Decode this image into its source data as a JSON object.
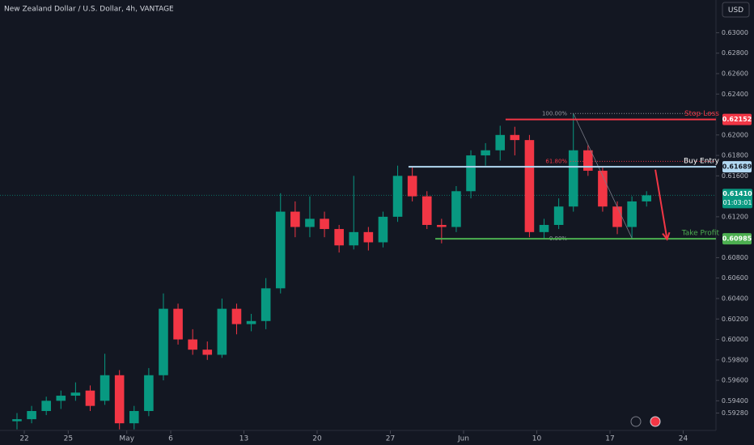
{
  "chart_data": {
    "type": "candlestick",
    "title": "New Zealand Dollar / U.S. Dollar, 4h, VANTAGE",
    "currency": "USD",
    "x": [
      0,
      1,
      2,
      3,
      4,
      5,
      6,
      7,
      8,
      9,
      10,
      11,
      12,
      13,
      14,
      15,
      16,
      17,
      18,
      19,
      20,
      21,
      22,
      23,
      24,
      25,
      26,
      27,
      28,
      29,
      30,
      31,
      32,
      33,
      34,
      35,
      36,
      37,
      38,
      39,
      40,
      41,
      42,
      43
    ],
    "open": [
      0.592,
      0.5922,
      0.593,
      0.594,
      0.5945,
      0.595,
      0.594,
      0.5965,
      0.5918,
      0.593,
      0.5965,
      0.603,
      0.6,
      0.599,
      0.5985,
      0.603,
      0.6015,
      0.6018,
      0.605,
      0.6125,
      0.611,
      0.6118,
      0.6108,
      0.6092,
      0.6105,
      0.6095,
      0.612,
      0.616,
      0.614,
      0.6112,
      0.611,
      0.6145,
      0.618,
      0.6185,
      0.62,
      0.6195,
      0.6105,
      0.6112,
      0.613,
      0.6185,
      0.6165,
      0.613,
      0.611,
      0.6135
    ],
    "high": [
      0.5928,
      0.5935,
      0.5944,
      0.595,
      0.5958,
      0.5955,
      0.5986,
      0.597,
      0.5935,
      0.5972,
      0.6045,
      0.6035,
      0.601,
      0.5998,
      0.604,
      0.6035,
      0.6025,
      0.606,
      0.6143,
      0.6135,
      0.614,
      0.6125,
      0.6112,
      0.616,
      0.611,
      0.6125,
      0.617,
      0.6169,
      0.6145,
      0.6118,
      0.615,
      0.6185,
      0.6192,
      0.6209,
      0.6208,
      0.62,
      0.6118,
      0.6138,
      0.6221,
      0.619,
      0.6168,
      0.6135,
      0.614,
      0.6145
    ],
    "low": [
      0.5912,
      0.5918,
      0.5926,
      0.5932,
      0.594,
      0.593,
      0.5936,
      0.5912,
      0.5912,
      0.5925,
      0.596,
      0.5995,
      0.5985,
      0.598,
      0.5982,
      0.6005,
      0.6008,
      0.601,
      0.6045,
      0.61,
      0.61,
      0.61,
      0.6085,
      0.6088,
      0.6087,
      0.609,
      0.6115,
      0.6135,
      0.6108,
      0.6094,
      0.6105,
      0.6138,
      0.617,
      0.6175,
      0.618,
      0.61,
      0.6098,
      0.6108,
      0.6125,
      0.616,
      0.6125,
      0.6103,
      0.6099,
      0.613
    ],
    "close": [
      0.5922,
      0.593,
      0.594,
      0.5945,
      0.5948,
      0.5935,
      0.5965,
      0.5918,
      0.593,
      0.5965,
      0.603,
      0.6,
      0.599,
      0.5985,
      0.603,
      0.6015,
      0.6018,
      0.605,
      0.6125,
      0.611,
      0.6118,
      0.6108,
      0.6092,
      0.6105,
      0.6095,
      0.612,
      0.616,
      0.614,
      0.6112,
      0.611,
      0.6145,
      0.618,
      0.6185,
      0.62,
      0.6195,
      0.6105,
      0.6112,
      0.613,
      0.6185,
      0.6165,
      0.613,
      0.611,
      0.6135,
      0.6141
    ],
    "up_color": "#089981",
    "down_color": "#f23645",
    "xlim": [
      -1.16,
      47.74
    ],
    "xticks": [
      {
        "value": 0.5,
        "label": "22"
      },
      {
        "value": 3.5,
        "label": "25"
      },
      {
        "value": 7.5,
        "label": "May"
      },
      {
        "value": 10.5,
        "label": "6"
      },
      {
        "value": 15.5,
        "label": "13"
      },
      {
        "value": 20.5,
        "label": "20"
      },
      {
        "value": 25.5,
        "label": "27"
      },
      {
        "value": 30.5,
        "label": "Jun"
      },
      {
        "value": 35.5,
        "label": "10"
      },
      {
        "value": 40.5,
        "label": "17"
      },
      {
        "value": 45.5,
        "label": "24"
      }
    ],
    "ylim": [
      0.5911,
      0.6332
    ],
    "yticks": [
      {
        "value": 0.63,
        "label": "0.63000"
      },
      {
        "value": 0.628,
        "label": "0.62800"
      },
      {
        "value": 0.626,
        "label": "0.62600"
      },
      {
        "value": 0.624,
        "label": "0.62400"
      },
      {
        "value": 0.62,
        "label": "0.62000"
      },
      {
        "value": 0.618,
        "label": "0.61800"
      },
      {
        "value": 0.616,
        "label": "0.61600"
      },
      {
        "value": 0.612,
        "label": "0.61200"
      },
      {
        "value": 0.608,
        "label": "0.60800"
      },
      {
        "value": 0.606,
        "label": "0.60600"
      },
      {
        "value": 0.604,
        "label": "0.60400"
      },
      {
        "value": 0.602,
        "label": "0.60200"
      },
      {
        "value": 0.6,
        "label": "0.60000"
      },
      {
        "value": 0.598,
        "label": "0.59800"
      },
      {
        "value": 0.596,
        "label": "0.59600"
      },
      {
        "value": 0.594,
        "label": "0.59400"
      },
      {
        "value": 0.5928,
        "label": "0.59280"
      }
    ],
    "levels": [
      {
        "name": "Stop Loss",
        "price": {
          "value": 0.62152,
          "label": "0.62152"
        },
        "from": 33.37,
        "color": "#f23645",
        "text_color": "#f23645",
        "badge_text": "#ffffff"
      },
      {
        "name": "Buy Entry",
        "price": {
          "value": 0.61689,
          "label": "0.61689"
        },
        "from": 26.74,
        "color": "#b2d9f2",
        "text_color": "#ffffff",
        "badge_text": "#131722"
      },
      {
        "name": "Take Profit",
        "price": {
          "value": 0.60985,
          "label": "0.60985"
        },
        "from": 28.57,
        "color": "#4caf50",
        "text_color": "#4caf50",
        "badge_text": "#ffffff"
      }
    ],
    "fib": {
      "from": 37.8,
      "levels": [
        {
          "label": "100.00%",
          "value": 0.6221,
          "color": "#9598a1"
        },
        {
          "label": "61.80%",
          "value": 0.61742,
          "color": "#f23645"
        },
        {
          "label": "0.00%",
          "value": 0.60985,
          "color": "#9598a1"
        }
      ]
    },
    "trend_line": {
      "x": [
        38,
        42
      ],
      "y": [
        0.6221,
        0.6099
      ],
      "color": "#787b86"
    },
    "arrow": {
      "x": [
        43.6,
        44.4
      ],
      "y": [
        0.6166,
        0.6098
      ],
      "color": "#f23645"
    },
    "current": {
      "price": {
        "value": 0.6141,
        "label": "0.61410"
      },
      "countdown": "01:03:01",
      "color": "#089981"
    }
  }
}
